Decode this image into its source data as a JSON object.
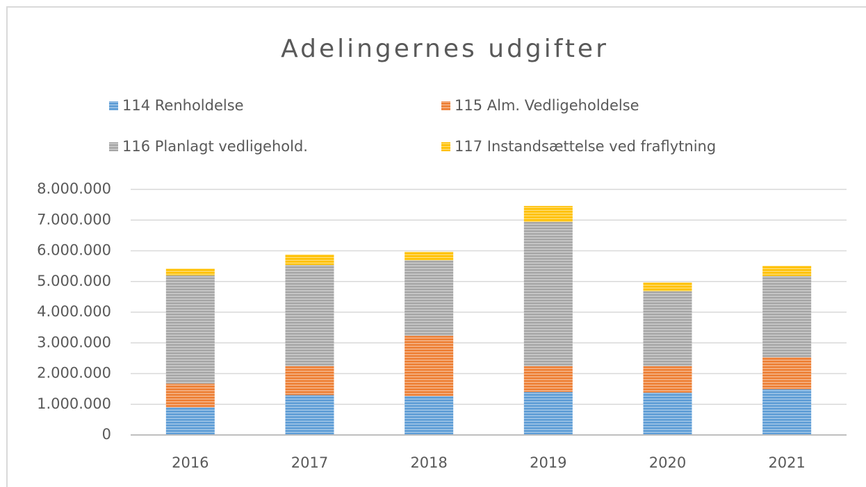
{
  "chart_data": {
    "type": "stacked_bar",
    "title": "Adelingernes udgifter",
    "categories": [
      "2016",
      "2017",
      "2018",
      "2019",
      "2020",
      "2021"
    ],
    "series": [
      {
        "name": "114 Renholdelse",
        "color": "#5b9bd5",
        "values": [
          900000,
          1300000,
          1270000,
          1400000,
          1380000,
          1490000
        ]
      },
      {
        "name": "115 Alm. Vedligeholdelse",
        "color": "#ed7d31",
        "values": [
          770000,
          940000,
          1960000,
          840000,
          860000,
          1040000
        ]
      },
      {
        "name": "116 Planlagt vedligehold.",
        "color": "#a5a5a5",
        "values": [
          3530000,
          3300000,
          2460000,
          4700000,
          2440000,
          2650000
        ]
      },
      {
        "name": "117 Instandsættelse ved fraflytning",
        "color": "#ffc000",
        "values": [
          220000,
          340000,
          280000,
          520000,
          290000,
          330000
        ]
      }
    ],
    "ylim": [
      0,
      8000000
    ],
    "yticks": [
      0,
      {
        "value": 1000000,
        "label": "1.000.000"
      },
      {
        "value": 2000000,
        "label": "2.000.000"
      },
      {
        "value": 3000000,
        "label": "3.000.000"
      },
      {
        "value": 4000000,
        "label": "4.000.000"
      },
      {
        "value": 5000000,
        "label": "5.000.000"
      },
      {
        "value": 6000000,
        "label": "6.000.000"
      },
      {
        "value": 7000000,
        "label": "7.000.000"
      },
      {
        "value": 8000000,
        "label": "8.000.000"
      }
    ],
    "grid": true
  }
}
